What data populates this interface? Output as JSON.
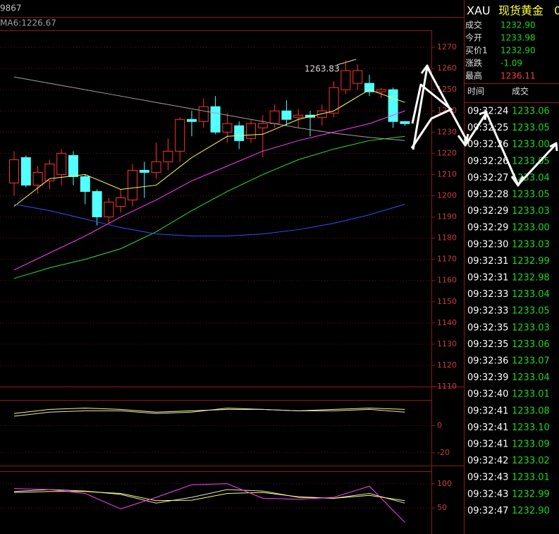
{
  "header": {
    "symbol": "XAU",
    "name": "现货黄金",
    "code_fragment": "0"
  },
  "quote": [
    {
      "label": "成交",
      "value": "1232.90",
      "color": "#18d818"
    },
    {
      "label": "今开",
      "value": "1233.98",
      "color": "#18d818"
    },
    {
      "label": "买价1",
      "value": "1232.90",
      "color": "#18d818"
    },
    {
      "label": "涨跌",
      "value": "-1.09",
      "color": "#18d818"
    },
    {
      "label": "最高",
      "value": "1236.11",
      "color": "#ff3c3c"
    }
  ],
  "ticks_table": {
    "header": [
      "时间",
      "成交"
    ],
    "rows": [
      [
        "09:32:24",
        "1233.06"
      ],
      [
        "09:32:25",
        "1233.05"
      ],
      [
        "09:32:26",
        "1233.00"
      ],
      [
        "09:32:26",
        "1233.05"
      ],
      [
        "09:32:27",
        "1233.04"
      ],
      [
        "09:32:28",
        "1233.05"
      ],
      [
        "09:32:29",
        "1233.03"
      ],
      [
        "09:32:29",
        "1233.00"
      ],
      [
        "09:32:30",
        "1233.03"
      ],
      [
        "09:32:31",
        "1232.99"
      ],
      [
        "09:32:31",
        "1232.98"
      ],
      [
        "09:32:33",
        "1233.04"
      ],
      [
        "09:32:33",
        "1233.05"
      ],
      [
        "09:32:35",
        "1233.03"
      ],
      [
        "09:32:35",
        "1233.06"
      ],
      [
        "09:32:36",
        "1233.07"
      ],
      [
        "09:32:39",
        "1233.04"
      ],
      [
        "09:32:40",
        "1233.01"
      ],
      [
        "09:32:41",
        "1233.08"
      ],
      [
        "09:32:41",
        "1233.10"
      ],
      [
        "09:32:41",
        "1233.09"
      ],
      [
        "09:32:42",
        "1233.02"
      ],
      [
        "09:32:43",
        "1233.01"
      ],
      [
        "09:32:43",
        "1232.99"
      ],
      [
        "09:32:47",
        "1232.90"
      ]
    ]
  },
  "chart_data": [
    {
      "type": "candlestick",
      "top_fragment": "9867",
      "ma_label": "MA6:1226.67",
      "annotation": "1263.83",
      "up_color": "#ff3232",
      "down_color": "#54ffff",
      "ylim": [
        1110,
        1278
      ],
      "yticks": [
        1110,
        1120,
        1130,
        1140,
        1150,
        1160,
        1170,
        1180,
        1190,
        1200,
        1210,
        1220,
        1230,
        1240,
        1250,
        1260,
        1270
      ],
      "grid": true,
      "open": [
        1206,
        1218,
        1205,
        1207,
        1210,
        1219,
        1209,
        1202,
        1190,
        1195,
        1198,
        1212,
        1211,
        1216,
        1221,
        1236,
        1235,
        1242,
        1230,
        1233,
        1227,
        1232,
        1234,
        1240,
        1237,
        1238,
        1237,
        1239,
        1250,
        1253,
        1253,
        1249,
        1250,
        1235
      ],
      "close": [
        1217,
        1205,
        1211,
        1215,
        1220,
        1209,
        1202,
        1190,
        1197,
        1199,
        1212,
        1211,
        1216,
        1221,
        1236,
        1235,
        1242,
        1230,
        1234,
        1226,
        1234,
        1234,
        1240,
        1236,
        1238,
        1237,
        1240,
        1251,
        1259,
        1259,
        1249,
        1250,
        1235,
        1234
      ],
      "high": [
        1221,
        1219,
        1214,
        1217,
        1222,
        1221,
        1210,
        1203,
        1199,
        1203,
        1215,
        1216,
        1225,
        1227,
        1237,
        1240,
        1246,
        1247,
        1239,
        1235,
        1236,
        1238,
        1243,
        1245,
        1241,
        1240,
        1243,
        1254,
        1263.83,
        1262,
        1257,
        1251,
        1251,
        1235
      ],
      "low": [
        1200,
        1204,
        1201,
        1203,
        1205,
        1205,
        1196,
        1186,
        1187,
        1192,
        1195,
        1199,
        1208,
        1212,
        1216,
        1228,
        1232,
        1229,
        1225,
        1222,
        1225,
        1218,
        1232,
        1233,
        1232,
        1228,
        1233,
        1237,
        1248,
        1250,
        1247,
        1246,
        1232,
        1233
      ],
      "series": [
        {
          "color": "#a0a0a0",
          "x": [
            0,
            3,
            6,
            9,
            12,
            15,
            18,
            21,
            24,
            27,
            30,
            33
          ],
          "values": [
            1256,
            1253,
            1250,
            1247,
            1244,
            1241,
            1238,
            1235,
            1232,
            1229.5,
            1227.5,
            1226
          ]
        },
        {
          "color": "#ffff50",
          "x": [
            0,
            3,
            6,
            9,
            12,
            15,
            18,
            21,
            24,
            27,
            30,
            33
          ],
          "values": [
            1195,
            1208,
            1210,
            1203,
            1205,
            1218,
            1228,
            1229,
            1236,
            1240,
            1250,
            1244
          ]
        },
        {
          "color": "#ff40ff",
          "x": [
            0,
            3,
            6,
            9,
            12,
            15,
            18,
            21,
            24,
            27,
            30,
            33
          ],
          "values": [
            1165,
            1173,
            1181,
            1190,
            1198,
            1207,
            1214,
            1221,
            1226,
            1230,
            1234,
            1240
          ]
        },
        {
          "color": "#30e030",
          "x": [
            0,
            3,
            6,
            9,
            12,
            15,
            18,
            21,
            24,
            27,
            30,
            33
          ],
          "values": [
            1161,
            1166,
            1170,
            1175,
            1183,
            1193,
            1202,
            1210,
            1217,
            1222,
            1226,
            1228
          ]
        },
        {
          "color": "#3050ff",
          "x": [
            0,
            3,
            6,
            9,
            12,
            15,
            18,
            21,
            24,
            27,
            30,
            33
          ],
          "values": [
            1196,
            1193,
            1189,
            1185,
            1182,
            1181,
            1181,
            1182,
            1184,
            1187,
            1191,
            1196
          ]
        }
      ]
    },
    {
      "type": "line",
      "ylim": [
        -29.5,
        19
      ],
      "yticks": [
        0,
        -20
      ],
      "series": [
        {
          "color": "#ffff50",
          "x": [
            0,
            3,
            6,
            9,
            12,
            15,
            18,
            21,
            24,
            27,
            30,
            33
          ],
          "values": [
            9,
            12,
            13,
            12,
            10,
            11,
            12,
            12,
            11,
            12,
            13,
            12
          ]
        },
        {
          "color": "#e0e0e0",
          "x": [
            0,
            3,
            6,
            9,
            12,
            15,
            18,
            21,
            24,
            27,
            30,
            33
          ],
          "values": [
            7,
            10,
            11,
            11,
            9,
            10,
            13,
            12,
            11,
            11,
            12,
            10
          ]
        }
      ]
    },
    {
      "type": "line",
      "ylim": [
        -4,
        126
      ],
      "yticks": [
        50,
        100
      ],
      "series": [
        {
          "color": "#e0e0e0",
          "x": [
            0,
            3,
            6,
            9,
            12,
            15,
            18,
            21,
            24,
            27,
            30,
            33
          ],
          "values": [
            84,
            88,
            85,
            78,
            60,
            72,
            88,
            85,
            72,
            70,
            80,
            60
          ]
        },
        {
          "color": "#ffff50",
          "x": [
            0,
            3,
            6,
            9,
            12,
            15,
            18,
            21,
            24,
            27,
            30,
            33
          ],
          "values": [
            82,
            84,
            84,
            80,
            65,
            66,
            80,
            82,
            73,
            70,
            76,
            65
          ]
        },
        {
          "color": "#ff40ff",
          "x": [
            0,
            3,
            6,
            9,
            12,
            15,
            18,
            21,
            24,
            27,
            30,
            33
          ],
          "values": [
            90,
            88,
            80,
            48,
            72,
            98,
            100,
            70,
            68,
            72,
            95,
            20
          ]
        }
      ]
    }
  ]
}
